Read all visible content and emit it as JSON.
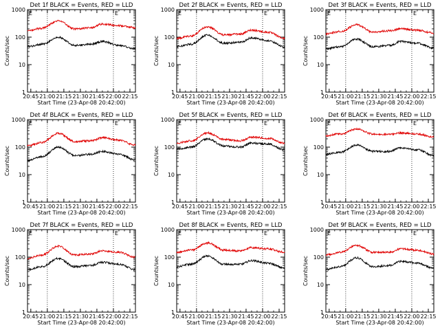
{
  "figure": {
    "panel_layout": "3x3 grid",
    "colors": {
      "events": "#000000",
      "lld": "#e00000",
      "background": "#ffffff"
    },
    "shared": {
      "ylabel": "Counts/sec",
      "xlabel": "Start Time (23-Apr-08 20:42:00)",
      "x_tick_labels": [
        "20:45",
        "21:00",
        "21:15",
        "21:30",
        "21:45",
        "22:00",
        "22:15"
      ],
      "y_tick_labels": [
        "1",
        "10",
        "100",
        "1000"
      ],
      "marker": "E",
      "dotted_lines_at": [
        "21:00",
        "22:00"
      ]
    }
  },
  "chart_data": [
    {
      "type": "line",
      "title": "Det 1f BLACK = Events, RED = LLD",
      "ylim": [
        1,
        1000
      ],
      "yscale": "log",
      "xrange": [
        "20:42",
        "22:20"
      ],
      "series": [
        {
          "name": "Events",
          "x": [
            "20:42",
            "20:55",
            "21:10",
            "21:25",
            "21:40",
            "21:50",
            "22:05",
            "22:20"
          ],
          "values": [
            45,
            55,
            100,
            50,
            55,
            70,
            50,
            38
          ]
        },
        {
          "name": "LLD",
          "x": [
            "20:42",
            "20:55",
            "21:10",
            "21:25",
            "21:40",
            "21:50",
            "22:05",
            "22:20"
          ],
          "values": [
            170,
            210,
            400,
            200,
            220,
            300,
            260,
            220
          ]
        }
      ]
    },
    {
      "type": "line",
      "title": "Det 2f BLACK = Events, RED = LLD",
      "ylim": [
        1,
        1000
      ],
      "yscale": "log",
      "xrange": [
        "20:42",
        "22:20"
      ],
      "series": [
        {
          "name": "Events",
          "x": [
            "20:42",
            "20:55",
            "21:10",
            "21:25",
            "21:40",
            "21:50",
            "22:05",
            "22:20"
          ],
          "values": [
            45,
            55,
            120,
            60,
            65,
            95,
            75,
            45
          ]
        },
        {
          "name": "LLD",
          "x": [
            "20:42",
            "20:55",
            "21:10",
            "21:25",
            "21:40",
            "21:50",
            "22:05",
            "22:20"
          ],
          "values": [
            90,
            110,
            240,
            120,
            130,
            180,
            150,
            90
          ]
        }
      ]
    },
    {
      "type": "line",
      "title": "Det 3f BLACK = Events, RED = LLD",
      "ylim": [
        1,
        1000
      ],
      "yscale": "log",
      "xrange": [
        "20:42",
        "22:20"
      ],
      "series": [
        {
          "name": "Events",
          "x": [
            "20:42",
            "20:55",
            "21:10",
            "21:25",
            "21:40",
            "21:50",
            "22:05",
            "22:20"
          ],
          "values": [
            38,
            45,
            85,
            45,
            50,
            70,
            60,
            40
          ]
        },
        {
          "name": "LLD",
          "x": [
            "20:42",
            "20:55",
            "21:10",
            "21:25",
            "21:40",
            "21:50",
            "22:05",
            "22:20"
          ],
          "values": [
            130,
            160,
            280,
            150,
            170,
            200,
            180,
            140
          ]
        }
      ]
    },
    {
      "type": "line",
      "title": "Det 4f BLACK = Events, RED = LLD",
      "ylim": [
        1,
        1000
      ],
      "yscale": "log",
      "xrange": [
        "20:42",
        "22:20"
      ],
      "series": [
        {
          "name": "Events",
          "x": [
            "20:42",
            "20:55",
            "21:10",
            "21:25",
            "21:40",
            "21:50",
            "22:05",
            "22:20"
          ],
          "values": [
            32,
            45,
            100,
            50,
            55,
            70,
            55,
            35
          ]
        },
        {
          "name": "LLD",
          "x": [
            "20:42",
            "20:55",
            "21:10",
            "21:25",
            "21:40",
            "21:50",
            "22:05",
            "22:20"
          ],
          "values": [
            110,
            150,
            320,
            160,
            170,
            220,
            180,
            120
          ]
        }
      ]
    },
    {
      "type": "line",
      "title": "Det 5f BLACK = Events, RED = LLD",
      "ylim": [
        1,
        1000
      ],
      "yscale": "log",
      "xrange": [
        "20:42",
        "22:20"
      ],
      "series": [
        {
          "name": "Events",
          "x": [
            "20:42",
            "20:55",
            "21:10",
            "21:25",
            "21:40",
            "21:50",
            "22:05",
            "22:20"
          ],
          "values": [
            85,
            100,
            200,
            110,
            100,
            140,
            130,
            80
          ]
        },
        {
          "name": "LLD",
          "x": [
            "20:42",
            "20:55",
            "21:10",
            "21:25",
            "21:40",
            "21:50",
            "22:05",
            "22:20"
          ],
          "values": [
            140,
            170,
            330,
            190,
            170,
            230,
            210,
            140
          ]
        }
      ]
    },
    {
      "type": "line",
      "title": "Det 6f BLACK = Events, RED = LLD",
      "ylim": [
        1,
        1000
      ],
      "yscale": "log",
      "xrange": [
        "20:42",
        "22:20"
      ],
      "series": [
        {
          "name": "Events",
          "x": [
            "20:42",
            "20:55",
            "21:10",
            "21:25",
            "21:40",
            "21:50",
            "22:05",
            "22:20"
          ],
          "values": [
            55,
            65,
            120,
            70,
            70,
            95,
            80,
            50
          ]
        },
        {
          "name": "LLD",
          "x": [
            "20:42",
            "20:55",
            "21:10",
            "21:25",
            "21:40",
            "21:50",
            "22:05",
            "22:20"
          ],
          "values": [
            260,
            300,
            450,
            300,
            290,
            330,
            300,
            230
          ]
        }
      ]
    },
    {
      "type": "line",
      "title": "Det 7f BLACK = Events, RED = LLD",
      "ylim": [
        1,
        1000
      ],
      "yscale": "log",
      "xrange": [
        "20:42",
        "22:20"
      ],
      "series": [
        {
          "name": "Events",
          "x": [
            "20:42",
            "20:55",
            "21:10",
            "21:25",
            "21:40",
            "21:50",
            "22:05",
            "22:20"
          ],
          "values": [
            35,
            45,
            90,
            45,
            50,
            65,
            55,
            35
          ]
        },
        {
          "name": "LLD",
          "x": [
            "20:42",
            "20:55",
            "21:10",
            "21:25",
            "21:40",
            "21:50",
            "22:05",
            "22:20"
          ],
          "values": [
            90,
            120,
            250,
            120,
            130,
            170,
            150,
            100
          ]
        }
      ]
    },
    {
      "type": "line",
      "title": "Det 8f BLACK = Events, RED = LLD",
      "ylim": [
        1,
        1000
      ],
      "yscale": "log",
      "xrange": [
        "20:42",
        "22:20"
      ],
      "series": [
        {
          "name": "Events",
          "x": [
            "20:42",
            "20:55",
            "21:10",
            "21:25",
            "21:40",
            "21:50",
            "22:05",
            "22:20"
          ],
          "values": [
            45,
            55,
            110,
            55,
            55,
            75,
            60,
            40
          ]
        },
        {
          "name": "LLD",
          "x": [
            "20:42",
            "20:55",
            "21:10",
            "21:25",
            "21:40",
            "21:50",
            "22:05",
            "22:20"
          ],
          "values": [
            150,
            180,
            330,
            180,
            170,
            220,
            200,
            150
          ]
        }
      ]
    },
    {
      "type": "line",
      "title": "Det 9f BLACK = Events, RED = LLD",
      "ylim": [
        1,
        1000
      ],
      "yscale": "log",
      "xrange": [
        "20:42",
        "22:20"
      ],
      "series": [
        {
          "name": "Events",
          "x": [
            "20:42",
            "20:55",
            "21:10",
            "21:25",
            "21:40",
            "21:50",
            "22:05",
            "22:20"
          ],
          "values": [
            35,
            45,
            95,
            45,
            50,
            70,
            60,
            40
          ]
        },
        {
          "name": "LLD",
          "x": [
            "20:42",
            "20:55",
            "21:10",
            "21:25",
            "21:40",
            "21:50",
            "22:05",
            "22:20"
          ],
          "values": [
            120,
            150,
            270,
            150,
            150,
            200,
            180,
            130
          ]
        }
      ]
    }
  ]
}
